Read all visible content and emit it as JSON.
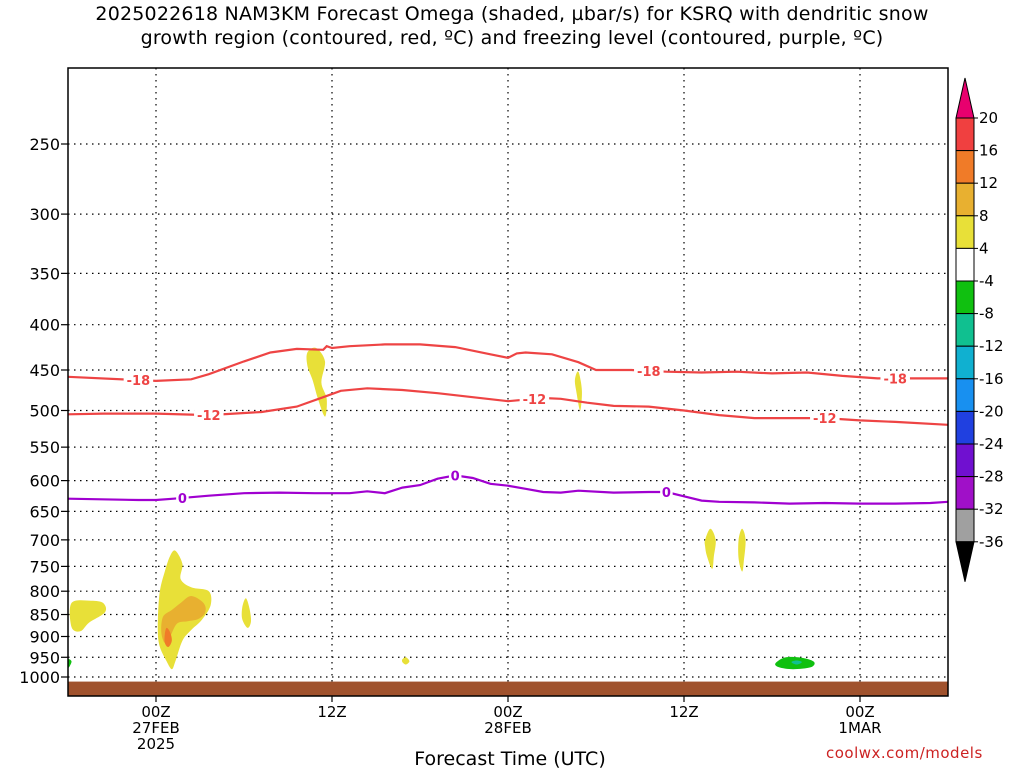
{
  "title": {
    "line1": "2025022618 NAM3KM Forecast Omega (shaded, µbar/s) for KSRQ with dendritic snow",
    "line2": "growth region (contoured, red, ºC) and freezing level (contoured, purple, ºC)"
  },
  "credit": "coolwx.com/models",
  "chart_data": {
    "type": "contour",
    "title": "2025022618 NAM3KM Forecast Omega (shaded, µbar/s) for KSRQ with dendritic snow growth region (contoured, red, ºC) and freezing level (contoured, purple, ºC)",
    "xlabel": "Forecast Time (UTC)",
    "xlim_hours": [
      -5,
      45
    ],
    "ylim_hpa": [
      1025,
      170
    ],
    "y_ticks": [
      250,
      300,
      350,
      400,
      450,
      500,
      550,
      600,
      650,
      700,
      750,
      800,
      850,
      900,
      950,
      1000
    ],
    "x_ticks": [
      {
        "hour": 0,
        "lines": [
          "00Z",
          "27FEB",
          "2025"
        ]
      },
      {
        "hour": 10,
        "lines": [
          "12Z"
        ]
      },
      {
        "hour": 20,
        "lines": [
          "00Z",
          "28FEB"
        ]
      },
      {
        "hour": 30,
        "lines": [
          "12Z"
        ]
      },
      {
        "hour": 40,
        "lines": [
          "00Z",
          "1MAR"
        ]
      }
    ],
    "grid": "dotted",
    "colorbar": {
      "labels": [
        "20",
        "16",
        "12",
        "8",
        "4",
        "-4",
        "-8",
        "-12",
        "-16",
        "-20",
        "-24",
        "-28",
        "-32",
        "-36"
      ],
      "colors": [
        "#e8006e",
        "#f04040",
        "#f07b28",
        "#e8b030",
        "#e8e038",
        "#ffffff",
        "#10c010",
        "#10c090",
        "#10b0d0",
        "#1890f0",
        "#2040e0",
        "#7010d0",
        "#a010c8",
        "#a0a0a0",
        "#000000"
      ]
    },
    "contours": [
      {
        "label": "-18",
        "color": "#ee4444",
        "points": [
          [
            -5,
            458
          ],
          [
            0,
            463
          ],
          [
            2,
            461
          ],
          [
            3,
            455
          ],
          [
            5,
            440
          ],
          [
            6.5,
            430
          ],
          [
            8,
            426
          ],
          [
            9.5,
            427
          ],
          [
            9.7,
            423
          ],
          [
            10,
            425
          ],
          [
            11,
            423
          ],
          [
            13,
            421
          ],
          [
            15,
            421
          ],
          [
            17,
            424
          ],
          [
            19,
            432
          ],
          [
            20,
            436
          ],
          [
            20.5,
            431
          ],
          [
            21,
            430
          ],
          [
            22.5,
            432
          ],
          [
            24,
            441
          ],
          [
            25,
            450
          ],
          [
            27,
            450
          ],
          [
            29,
            452
          ],
          [
            31,
            453
          ],
          [
            33,
            452
          ],
          [
            35,
            454
          ],
          [
            37,
            453
          ],
          [
            39,
            457
          ],
          [
            41,
            460
          ],
          [
            43,
            460
          ],
          [
            45,
            460
          ]
        ],
        "labels_at": [
          -1,
          28,
          42
        ]
      },
      {
        "label": "-12",
        "color": "#ee4444",
        "points": [
          [
            -5,
            505
          ],
          [
            -3,
            504
          ],
          [
            0,
            504
          ],
          [
            3,
            506
          ],
          [
            6,
            502
          ],
          [
            8,
            495
          ],
          [
            9.5,
            483
          ],
          [
            10.5,
            475
          ],
          [
            12,
            472
          ],
          [
            14,
            474
          ],
          [
            16,
            478
          ],
          [
            18,
            483
          ],
          [
            20,
            488
          ],
          [
            22,
            484
          ],
          [
            23,
            485
          ],
          [
            24.5,
            490
          ],
          [
            26,
            494
          ],
          [
            28,
            495
          ],
          [
            30,
            500
          ],
          [
            32,
            506
          ],
          [
            34,
            510
          ],
          [
            36,
            510
          ],
          [
            38,
            510
          ],
          [
            40,
            513
          ],
          [
            42,
            515
          ],
          [
            45,
            519
          ]
        ],
        "labels_at": [
          3,
          21.5,
          38
        ]
      },
      {
        "label": "0",
        "color": "#a000d0",
        "points": [
          [
            -5,
            629
          ],
          [
            -1,
            631
          ],
          [
            0,
            631
          ],
          [
            1,
            629
          ],
          [
            3,
            624
          ],
          [
            5,
            620
          ],
          [
            7,
            619
          ],
          [
            9,
            620
          ],
          [
            11,
            620
          ],
          [
            12,
            617
          ],
          [
            13,
            620
          ],
          [
            14,
            611
          ],
          [
            15,
            607
          ],
          [
            16,
            597
          ],
          [
            17,
            592
          ],
          [
            18,
            596
          ],
          [
            19,
            605
          ],
          [
            20,
            608
          ],
          [
            21,
            613
          ],
          [
            22,
            618
          ],
          [
            23,
            619
          ],
          [
            24,
            616
          ],
          [
            26,
            619
          ],
          [
            28,
            618
          ],
          [
            29,
            618
          ],
          [
            30,
            625
          ],
          [
            31,
            632
          ],
          [
            32,
            634
          ],
          [
            34,
            635
          ],
          [
            36,
            637
          ],
          [
            38,
            636
          ],
          [
            40,
            637
          ],
          [
            42,
            637
          ],
          [
            44,
            636
          ],
          [
            45,
            634
          ]
        ],
        "labels_at": [
          1.5,
          17,
          29
        ]
      }
    ],
    "omega_regions": [
      {
        "shape": "path",
        "color": "#e8e038",
        "pts": [
          [
            -4.8,
            825
          ],
          [
            -3.7,
            820
          ],
          [
            -3,
            825
          ],
          [
            -2.9,
            845
          ],
          [
            -3.8,
            868
          ],
          [
            -4.3,
            888
          ],
          [
            -4.8,
            878
          ]
        ]
      },
      {
        "shape": "path",
        "color": "#e8e038",
        "pts": [
          [
            0.2,
            805
          ],
          [
            0.5,
            760
          ],
          [
            0.8,
            730
          ],
          [
            1.1,
            720
          ],
          [
            1.5,
            745
          ],
          [
            1.4,
            775
          ],
          [
            2,
            792
          ],
          [
            3,
            800
          ],
          [
            3.1,
            830
          ],
          [
            2.6,
            862
          ],
          [
            2,
            885
          ],
          [
            1.5,
            910
          ],
          [
            1.1,
            960
          ],
          [
            0.9,
            980
          ],
          [
            0.6,
            960
          ],
          [
            0.2,
            922
          ],
          [
            0.1,
            880
          ]
        ]
      },
      {
        "shape": "path",
        "color": "#e8b030",
        "pts": [
          [
            0.4,
            855
          ],
          [
            0.9,
            840
          ],
          [
            1.4,
            825
          ],
          [
            2,
            810
          ],
          [
            2.7,
            825
          ],
          [
            2.8,
            845
          ],
          [
            2.4,
            860
          ],
          [
            1.8,
            865
          ],
          [
            1.2,
            870
          ],
          [
            0.8,
            900
          ],
          [
            0.5,
            915
          ],
          [
            0.3,
            890
          ]
        ]
      },
      {
        "shape": "path",
        "color": "#f07b28",
        "pts": [
          [
            0.6,
            880
          ],
          [
            0.8,
            890
          ],
          [
            0.9,
            910
          ],
          [
            0.7,
            925
          ],
          [
            0.5,
            915
          ],
          [
            0.5,
            895
          ]
        ]
      },
      {
        "shape": "path",
        "color": "#e8e038",
        "pts": [
          [
            4.9,
            835
          ],
          [
            5.1,
            815
          ],
          [
            5.3,
            835
          ],
          [
            5.4,
            865
          ],
          [
            5.2,
            880
          ],
          [
            4.9,
            860
          ]
        ]
      },
      {
        "shape": "path",
        "color": "#e8e038",
        "pts": [
          [
            8.6,
            430
          ],
          [
            9.1,
            425
          ],
          [
            9.6,
            440
          ],
          [
            9.4,
            465
          ],
          [
            9.7,
            485
          ],
          [
            9.6,
            508
          ],
          [
            9.2,
            485
          ],
          [
            8.9,
            462
          ],
          [
            8.6,
            445
          ]
        ]
      },
      {
        "shape": "path",
        "color": "#e8e038",
        "pts": [
          [
            14,
            955
          ],
          [
            14.2,
            950
          ],
          [
            14.4,
            960
          ],
          [
            14.2,
            968
          ],
          [
            14,
            962
          ]
        ]
      },
      {
        "shape": "path",
        "color": "#e8e038",
        "pts": [
          [
            23.8,
            462
          ],
          [
            24,
            452
          ],
          [
            24.2,
            475
          ],
          [
            24.1,
            500
          ],
          [
            23.9,
            478
          ]
        ]
      },
      {
        "shape": "path",
        "color": "#e8e038",
        "pts": [
          [
            31.2,
            700
          ],
          [
            31.5,
            680
          ],
          [
            31.8,
            700
          ],
          [
            31.7,
            730
          ],
          [
            31.6,
            755
          ],
          [
            31.3,
            730
          ],
          [
            31.2,
            712
          ]
        ]
      },
      {
        "shape": "path",
        "color": "#e8e038",
        "pts": [
          [
            33.1,
            700
          ],
          [
            33.3,
            680
          ],
          [
            33.5,
            700
          ],
          [
            33.4,
            740
          ],
          [
            33.3,
            760
          ],
          [
            33.1,
            735
          ]
        ]
      },
      {
        "shape": "path",
        "color": "#10c010",
        "pts": [
          [
            35.2,
            965
          ],
          [
            35.8,
            950
          ],
          [
            36.8,
            952
          ],
          [
            37.4,
            962
          ],
          [
            37.2,
            975
          ],
          [
            36.2,
            980
          ],
          [
            35.4,
            975
          ]
        ]
      },
      {
        "shape": "path",
        "color": "#10c090",
        "pts": [
          [
            36.1,
            962
          ],
          [
            36.4,
            958
          ],
          [
            36.7,
            962
          ],
          [
            36.4,
            968
          ]
        ]
      },
      {
        "shape": "path",
        "color": "#10c010",
        "pts": [
          [
            -5,
            955
          ],
          [
            -4.8,
            960
          ],
          [
            -4.9,
            972
          ],
          [
            -5,
            975
          ]
        ]
      }
    ],
    "ground": {
      "color": "#a0522d",
      "top_hpa": 1012
    }
  },
  "axis": {
    "xlabel": "Forecast Time (UTC)"
  }
}
